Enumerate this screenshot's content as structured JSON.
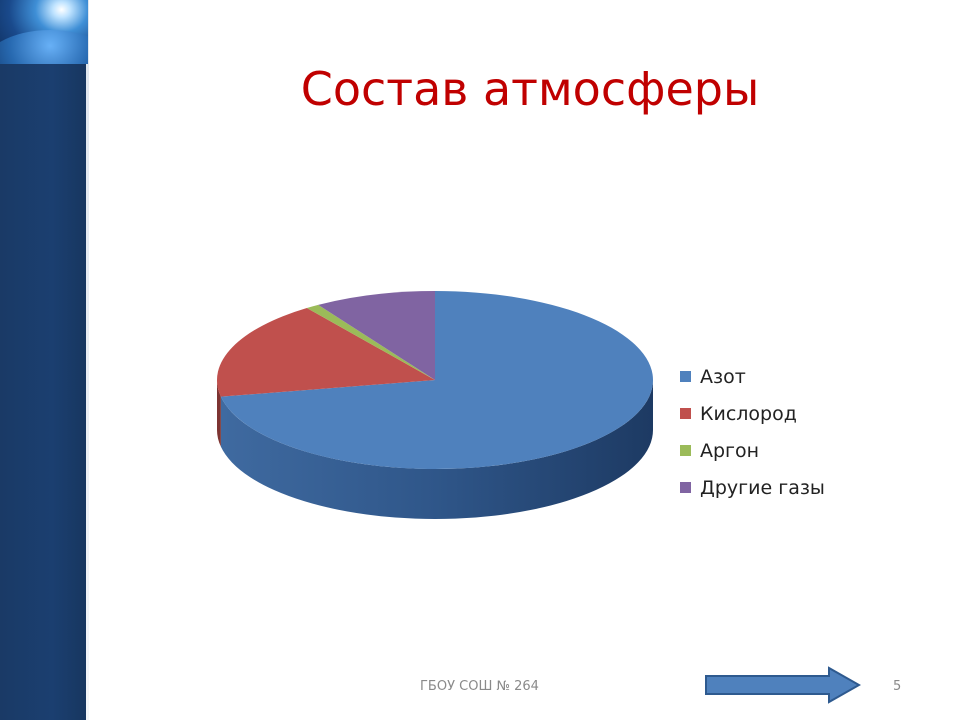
{
  "slide": {
    "title": "Состав атмосферы",
    "footer": "ГБОУ СОШ № 264",
    "page_number": "5"
  },
  "icons": {
    "next": "right-arrow-icon"
  },
  "chart_data": {
    "type": "pie",
    "title": "",
    "legend_position": "right",
    "categories": [
      "Азот",
      "Кислород",
      "Аргон",
      "Другие газы"
    ],
    "values": [
      72,
      18,
      1,
      9
    ],
    "colors": [
      "#4f81bd",
      "#c0504d",
      "#9bbb59",
      "#8064a2"
    ]
  }
}
